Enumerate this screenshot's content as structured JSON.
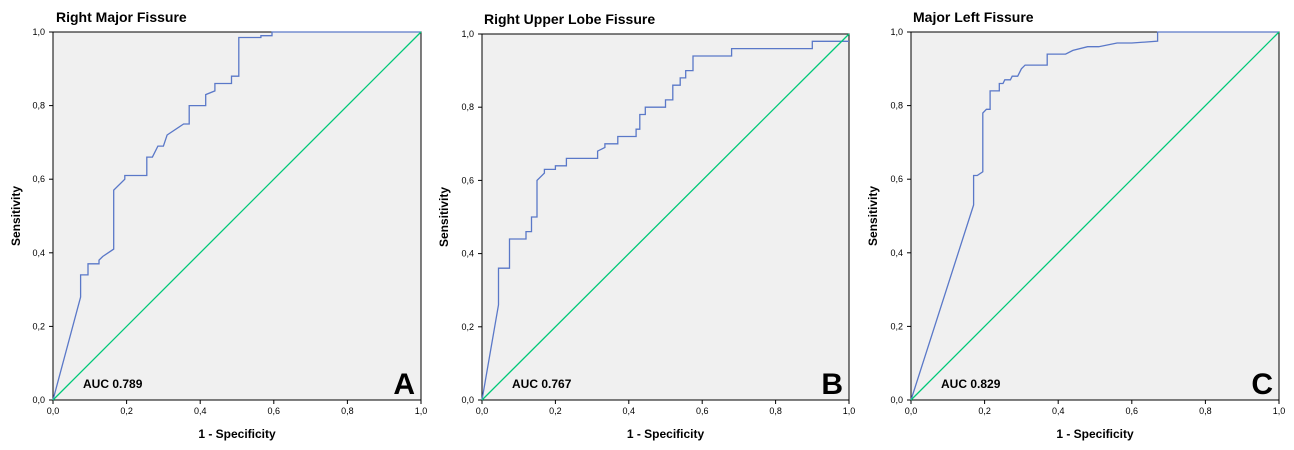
{
  "figure": {
    "background": "#ffffff",
    "plot_background": "#f0f0f0"
  },
  "chart_data": [
    {
      "type": "line",
      "title": "Right Major Fissure",
      "xlabel": "1 - Specificity",
      "ylabel": "Sensitivity",
      "xlim": [
        0,
        1
      ],
      "ylim": [
        0,
        1
      ],
      "xticks": [
        "0,0",
        "0,2",
        "0,4",
        "0,6",
        "0,8",
        "1,0"
      ],
      "yticks": [
        "0,0",
        "0,2",
        "0,4",
        "0,6",
        "0,8",
        "1,0"
      ],
      "auc_label": "AUC 0.789",
      "panel_label": "A",
      "series": [
        {
          "color": "#5a78c8",
          "x": [
            0,
            0.075,
            0.075,
            0.095,
            0.095,
            0.125,
            0.125,
            0.135,
            0.165,
            0.165,
            0.195,
            0.195,
            0.255,
            0.255,
            0.27,
            0.285,
            0.3,
            0.31,
            0.355,
            0.37,
            0.37,
            0.415,
            0.415,
            0.44,
            0.44,
            0.485,
            0.485,
            0.505,
            0.505,
            0.565,
            0.565,
            0.595,
            0.595,
            0.61,
            1.0
          ],
          "y": [
            0,
            0.28,
            0.34,
            0.34,
            0.37,
            0.37,
            0.38,
            0.39,
            0.41,
            0.57,
            0.6,
            0.61,
            0.61,
            0.66,
            0.66,
            0.69,
            0.69,
            0.72,
            0.75,
            0.75,
            0.8,
            0.8,
            0.83,
            0.84,
            0.86,
            0.86,
            0.88,
            0.88,
            0.985,
            0.985,
            0.99,
            0.99,
            1.0,
            1.0,
            1.0
          ]
        },
        {
          "color": "#00c878",
          "x": [
            0,
            1
          ],
          "y": [
            0,
            1
          ]
        }
      ]
    },
    {
      "type": "line",
      "title": "Right Upper Lobe Fissure",
      "xlabel": "1 - Specificity",
      "ylabel": "Sensitivity",
      "xlim": [
        0,
        1
      ],
      "ylim": [
        0,
        1
      ],
      "xticks": [
        "0,0",
        "0,2",
        "0,4",
        "0,6",
        "0,8",
        "1,0"
      ],
      "yticks": [
        "0,0",
        "0,2",
        "0,4",
        "0,6",
        "0,8",
        "1,0"
      ],
      "auc_label": "AUC 0.767",
      "panel_label": "B",
      "series": [
        {
          "color": "#5a78c8",
          "x": [
            0,
            0.045,
            0.045,
            0.075,
            0.075,
            0.12,
            0.12,
            0.135,
            0.135,
            0.15,
            0.15,
            0.17,
            0.17,
            0.2,
            0.2,
            0.23,
            0.23,
            0.315,
            0.315,
            0.335,
            0.335,
            0.37,
            0.37,
            0.42,
            0.42,
            0.43,
            0.43,
            0.445,
            0.445,
            0.5,
            0.5,
            0.52,
            0.52,
            0.54,
            0.54,
            0.555,
            0.555,
            0.575,
            0.575,
            0.68,
            0.68,
            0.9,
            0.9,
            1.0
          ],
          "y": [
            0,
            0.26,
            0.36,
            0.36,
            0.44,
            0.44,
            0.46,
            0.46,
            0.5,
            0.5,
            0.6,
            0.62,
            0.63,
            0.63,
            0.64,
            0.64,
            0.66,
            0.66,
            0.68,
            0.69,
            0.7,
            0.7,
            0.72,
            0.72,
            0.74,
            0.74,
            0.78,
            0.78,
            0.8,
            0.8,
            0.82,
            0.82,
            0.86,
            0.86,
            0.88,
            0.88,
            0.9,
            0.9,
            0.94,
            0.94,
            0.96,
            0.96,
            0.98,
            0.98
          ]
        },
        {
          "color": "#00c878",
          "x": [
            0,
            1
          ],
          "y": [
            0,
            1
          ]
        }
      ]
    },
    {
      "type": "line",
      "title": "Major Left Fissure",
      "xlabel": "1 - Specificity",
      "ylabel": "Sensitivity",
      "xlim": [
        0,
        1
      ],
      "ylim": [
        0,
        1
      ],
      "xticks": [
        "0,0",
        "0,2",
        "0,4",
        "0,6",
        "0,8",
        "1,0"
      ],
      "yticks": [
        "0,0",
        "0,2",
        "0,4",
        "0,6",
        "0,8",
        "1,0"
      ],
      "auc_label": "AUC 0.829",
      "panel_label": "C",
      "series": [
        {
          "color": "#5a78c8",
          "x": [
            0,
            0.17,
            0.17,
            0.18,
            0.195,
            0.195,
            0.205,
            0.215,
            0.215,
            0.24,
            0.24,
            0.25,
            0.255,
            0.27,
            0.275,
            0.29,
            0.3,
            0.31,
            0.33,
            0.37,
            0.37,
            0.42,
            0.44,
            0.48,
            0.51,
            0.56,
            0.6,
            0.67,
            0.67,
            1.0
          ],
          "y": [
            0,
            0.53,
            0.61,
            0.61,
            0.62,
            0.78,
            0.79,
            0.79,
            0.84,
            0.84,
            0.86,
            0.86,
            0.87,
            0.87,
            0.88,
            0.88,
            0.9,
            0.91,
            0.91,
            0.91,
            0.94,
            0.94,
            0.95,
            0.96,
            0.96,
            0.97,
            0.97,
            0.975,
            1.0,
            1.0
          ]
        },
        {
          "color": "#00c878",
          "x": [
            0,
            1
          ],
          "y": [
            0,
            1
          ]
        }
      ]
    }
  ]
}
